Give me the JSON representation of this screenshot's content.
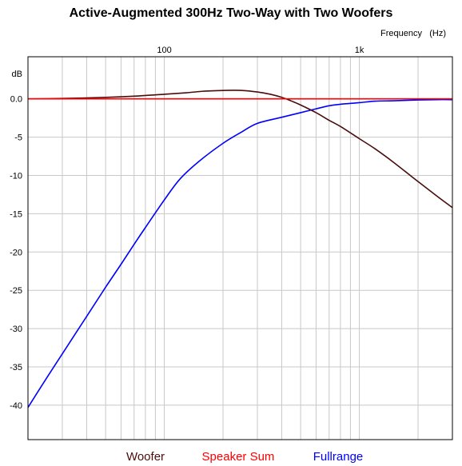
{
  "chart_data": {
    "type": "line",
    "title": "Active-Augmented 300Hz Two-Way with Two Woofers",
    "xlabel": "Frequency",
    "xunit": "(Hz)",
    "ylabel": "dB",
    "xscale": "log",
    "xlim": [
      20,
      3000
    ],
    "ylim": [
      -44.5,
      5.5
    ],
    "x_tick_labels": [
      {
        "value": 100,
        "label": "100"
      },
      {
        "value": 1000,
        "label": "1k"
      }
    ],
    "y_ticks": [
      {
        "value": 0,
        "label": "0.0"
      },
      {
        "value": -5,
        "label": "-5"
      },
      {
        "value": -10,
        "label": "-10"
      },
      {
        "value": -15,
        "label": "-15"
      },
      {
        "value": -20,
        "label": "-20"
      },
      {
        "value": -25,
        "label": "-25"
      },
      {
        "value": -30,
        "label": "-30"
      },
      {
        "value": -35,
        "label": "-35"
      },
      {
        "value": -40,
        "label": "-40"
      }
    ],
    "grid": true,
    "legend_position": "bottom",
    "series": [
      {
        "name": "Woofer",
        "color": "#4a0d0d",
        "x": [
          20,
          30,
          50,
          70,
          100,
          130,
          160,
          200,
          250,
          300,
          350,
          400,
          450,
          500,
          600,
          700,
          800,
          1000,
          1200,
          1500,
          2000,
          2500,
          3000
        ],
        "y": [
          0.0,
          0.05,
          0.2,
          0.35,
          0.6,
          0.8,
          1.0,
          1.1,
          1.1,
          0.9,
          0.6,
          0.2,
          -0.3,
          -0.8,
          -1.8,
          -2.8,
          -3.6,
          -5.2,
          -6.5,
          -8.3,
          -10.8,
          -12.7,
          -14.2
        ]
      },
      {
        "name": "Speaker Sum",
        "color": "#ff0000",
        "x": [
          20,
          3000
        ],
        "y": [
          0.0,
          0.0
        ]
      },
      {
        "name": "Fullrange",
        "color": "#0000ff",
        "x": [
          20,
          25,
          30,
          40,
          50,
          60,
          70,
          80,
          100,
          120,
          150,
          200,
          250,
          300,
          400,
          500,
          600,
          700,
          800,
          1000,
          1200,
          1500,
          2000,
          2500,
          3000
        ],
        "y": [
          -40.3,
          -36.4,
          -33.3,
          -28.4,
          -24.6,
          -21.6,
          -19.0,
          -16.8,
          -13.2,
          -10.5,
          -8.2,
          -5.8,
          -4.3,
          -3.2,
          -2.4,
          -1.8,
          -1.3,
          -0.9,
          -0.7,
          -0.5,
          -0.3,
          -0.25,
          -0.15,
          -0.1,
          -0.1
        ]
      }
    ]
  }
}
